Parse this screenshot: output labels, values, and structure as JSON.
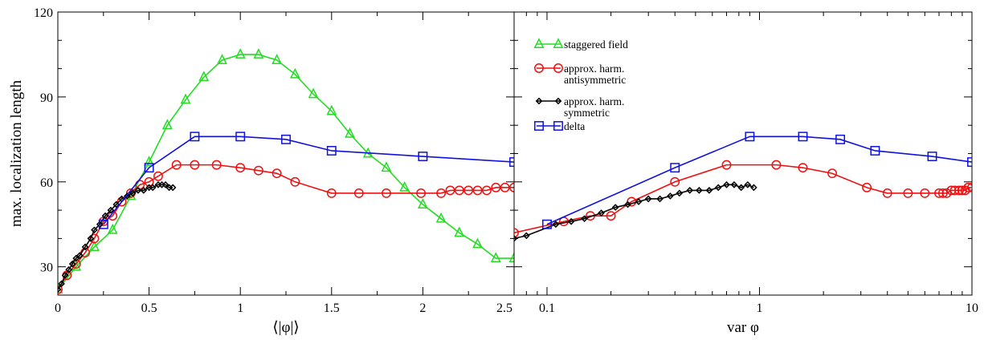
{
  "chart_data": [
    {
      "type": "line",
      "xlabel": "⟨|φ|⟩",
      "ylabel": "max. localization length",
      "xlim": [
        0,
        2.5
      ],
      "ylim": [
        20,
        120
      ],
      "xticks": [
        0,
        0.5,
        1,
        1.5,
        2,
        2.5
      ],
      "xtick_labels": [
        "0",
        "0.5",
        "1",
        "1.5",
        "2",
        "2.5"
      ],
      "yticks": [
        30,
        60,
        90,
        120
      ],
      "ytick_labels": [
        "30",
        "60",
        "90",
        "120"
      ],
      "grid": false,
      "series": [
        {
          "name": "staggered field",
          "marker": "triangle",
          "color": "#22dd22",
          "x": [
            0,
            0.1,
            0.2,
            0.3,
            0.4,
            0.5,
            0.6,
            0.7,
            0.8,
            0.9,
            1.0,
            1.1,
            1.2,
            1.3,
            1.4,
            1.5,
            1.6,
            1.7,
            1.8,
            1.9,
            2.0,
            2.1,
            2.2,
            2.3,
            2.4,
            2.5
          ],
          "y": [
            22,
            30,
            37,
            43,
            55,
            67,
            80,
            89,
            97,
            103,
            105,
            105,
            103,
            98,
            91,
            85,
            77,
            70,
            65,
            58,
            52,
            47,
            42,
            38,
            33,
            33
          ]
        },
        {
          "name": "approx. harm. antisymmetric",
          "marker": "circle",
          "color": "#ee1111",
          "x": [
            0.0,
            0.05,
            0.1,
            0.15,
            0.2,
            0.25,
            0.3,
            0.35,
            0.4,
            0.45,
            0.5,
            0.55,
            0.65,
            0.75,
            0.87,
            1.0,
            1.1,
            1.2,
            1.3,
            1.5,
            1.65,
            1.8,
            1.99,
            2.1,
            2.15,
            2.2,
            2.25,
            2.3,
            2.35,
            2.4,
            2.45,
            2.5
          ],
          "y": [
            22,
            27,
            31,
            35,
            40,
            46,
            48,
            53,
            56,
            59,
            60,
            62,
            66,
            66,
            66,
            65,
            64,
            63,
            60,
            56,
            56,
            56,
            56,
            56,
            57,
            57,
            57,
            57,
            57,
            58,
            58,
            58
          ]
        },
        {
          "name": "approx. harm. symmetric",
          "marker": "diamond",
          "color": "#000000",
          "x": [
            0.0,
            0.02,
            0.04,
            0.06,
            0.08,
            0.1,
            0.12,
            0.15,
            0.18,
            0.2,
            0.23,
            0.26,
            0.29,
            0.32,
            0.35,
            0.38,
            0.41,
            0.44,
            0.47,
            0.5,
            0.52,
            0.55,
            0.57,
            0.59,
            0.61,
            0.63
          ],
          "y": [
            22,
            24,
            27,
            29,
            31,
            33,
            34,
            37,
            40,
            43,
            45,
            48,
            50,
            52,
            54,
            55,
            56,
            57,
            57,
            58,
            58,
            59,
            59,
            59,
            58,
            58
          ]
        },
        {
          "name": "delta",
          "marker": "square",
          "color": "#1111dd",
          "x": [
            0.25,
            0.5,
            0.75,
            1.0,
            1.25,
            1.5,
            2.0,
            2.5
          ],
          "y": [
            45,
            65,
            76,
            76,
            75,
            71,
            69,
            67
          ]
        }
      ]
    },
    {
      "type": "line",
      "xlabel": "var φ",
      "xscale": "log",
      "xlim": [
        0.07,
        10
      ],
      "ylim": [
        20,
        120
      ],
      "xticks": [
        0.1,
        1,
        10
      ],
      "xtick_labels": [
        "0.1",
        "1",
        "10"
      ],
      "legend_position": "top-left",
      "grid": false,
      "series": [
        {
          "name": "approx. harm. antisymmetric",
          "marker": "circle",
          "color": "#ee1111",
          "x": [
            0.07,
            0.12,
            0.16,
            0.2,
            0.25,
            0.4,
            0.7,
            1.2,
            1.6,
            2.2,
            3.2,
            4.0,
            5.0,
            6.0,
            7.0,
            7.3,
            7.6,
            8.0,
            8.3,
            8.7,
            9.0,
            9.3,
            9.6,
            10.0
          ],
          "y": [
            42,
            46,
            48,
            48,
            53,
            60,
            66,
            66,
            65,
            63,
            58,
            56,
            56,
            56,
            56,
            56,
            56,
            57,
            57,
            57,
            57,
            57,
            58,
            58
          ]
        },
        {
          "name": "approx. harm. symmetric",
          "marker": "diamond",
          "color": "#000000",
          "x": [
            0.07,
            0.08,
            0.11,
            0.13,
            0.15,
            0.18,
            0.21,
            0.24,
            0.27,
            0.3,
            0.34,
            0.38,
            0.42,
            0.47,
            0.52,
            0.58,
            0.64,
            0.7,
            0.76,
            0.82,
            0.88,
            0.94
          ],
          "y": [
            40,
            41,
            45,
            46,
            47,
            49,
            51,
            52,
            53,
            54,
            54,
            55,
            56,
            57,
            57,
            57,
            58,
            59,
            59,
            58,
            59,
            58
          ]
        },
        {
          "name": "delta",
          "marker": "square",
          "color": "#1111dd",
          "x": [
            0.1,
            0.4,
            0.9,
            1.6,
            2.4,
            3.5,
            6.5,
            10.0
          ],
          "y": [
            45,
            65,
            76,
            76,
            75,
            71,
            69,
            67
          ]
        }
      ]
    }
  ],
  "legend": {
    "items": [
      {
        "lines": [
          "staggered field"
        ],
        "marker": "triangle",
        "color": "#22dd22"
      },
      {
        "lines": [
          "approx. harm.",
          "antisymmetric"
        ],
        "marker": "circle",
        "color": "#ee1111"
      },
      {
        "lines": [
          "approx. harm.",
          "symmetric"
        ],
        "marker": "diamond",
        "color": "#000000"
      },
      {
        "lines": [
          "delta"
        ],
        "marker": "square",
        "color": "#1111dd"
      }
    ]
  }
}
